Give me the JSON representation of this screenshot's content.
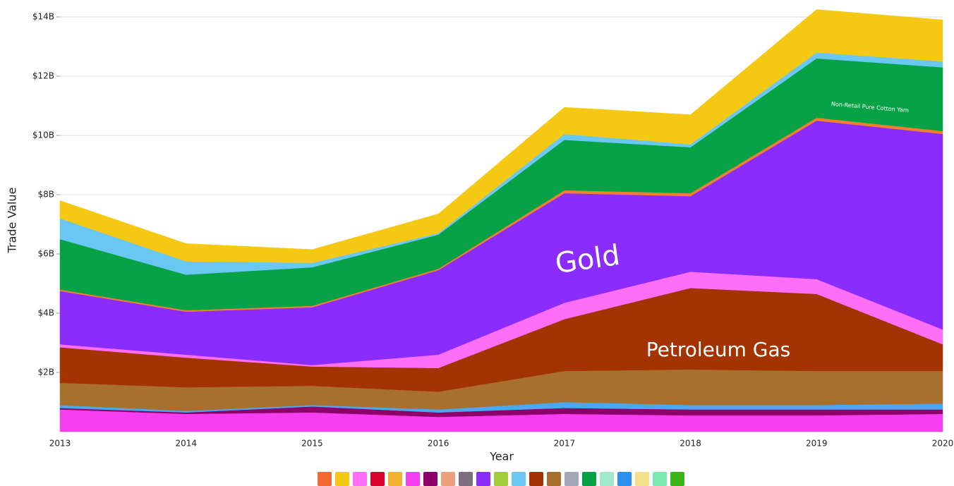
{
  "chart_data": {
    "type": "stacked_area",
    "x_label": "Year",
    "y_label": "Trade Value",
    "x": [
      2013,
      2014,
      2015,
      2016,
      2017,
      2018,
      2019,
      2020
    ],
    "xlim": [
      2013,
      2020
    ],
    "xticks": [
      2013,
      2014,
      2015,
      2016,
      2017,
      2018,
      2019,
      2020
    ],
    "ylim": [
      0,
      14
    ],
    "yticks": [
      {
        "value": 2,
        "label": "$2B"
      },
      {
        "value": 4,
        "label": "$4B"
      },
      {
        "value": 6,
        "label": "$6B"
      },
      {
        "value": 8,
        "label": "$8B"
      },
      {
        "value": 10,
        "label": "$10B"
      },
      {
        "value": 12,
        "label": "$12B"
      },
      {
        "value": 14,
        "label": "$14B"
      }
    ],
    "grid": true,
    "series": [
      {
        "color": "#f53ef0",
        "values": [
          0.75,
          0.6,
          0.65,
          0.5,
          0.6,
          0.55,
          0.55,
          0.6
        ]
      },
      {
        "color": "#8e0069",
        "values": [
          0.05,
          0.05,
          0.2,
          0.15,
          0.2,
          0.2,
          0.2,
          0.15
        ]
      },
      {
        "color": "#4aa7f0",
        "values": [
          0.1,
          0.05,
          0.05,
          0.1,
          0.2,
          0.15,
          0.15,
          0.2
        ]
      },
      {
        "color": "#a8702f",
        "values": [
          0.75,
          0.8,
          0.65,
          0.6,
          1.05,
          1.2,
          1.15,
          1.1
        ]
      },
      {
        "color": "#a33300",
        "values": [
          1.2,
          1.0,
          0.65,
          0.8,
          1.75,
          2.75,
          2.6,
          0.9
        ]
      },
      {
        "color": "#ff6ef7",
        "values": [
          0.1,
          0.1,
          0.05,
          0.45,
          0.55,
          0.55,
          0.5,
          0.5
        ]
      },
      {
        "color": "#8a2cfc",
        "values": [
          1.8,
          1.45,
          1.95,
          2.85,
          3.7,
          2.55,
          5.35,
          6.6
        ]
      },
      {
        "color": "#f08030",
        "values": [
          0.05,
          0.05,
          0.05,
          0.05,
          0.1,
          0.1,
          0.1,
          0.1
        ]
      },
      {
        "color": "#07a245",
        "values": [
          1.7,
          1.2,
          1.3,
          1.15,
          1.7,
          1.55,
          2.0,
          2.15
        ]
      },
      {
        "color": "#6ac7f2",
        "values": [
          0.7,
          0.45,
          0.15,
          0.05,
          0.2,
          0.1,
          0.2,
          0.2
        ]
      },
      {
        "color": "#f5c913",
        "values": [
          0.6,
          0.6,
          0.45,
          0.65,
          0.9,
          1.0,
          1.45,
          1.4
        ]
      }
    ],
    "annotations": [
      "Gold",
      "Petroleum Gas",
      "Non-Retail Pure Cotton Yarn"
    ],
    "legend_colors": [
      "#f06a35",
      "#f5c913",
      "#ff6ef7",
      "#d9052e",
      "#f0b030",
      "#f53ef0",
      "#8e0069",
      "#eda07a",
      "#7d6e80",
      "#8a2cfc",
      "#a4cc39",
      "#6ac7f2",
      "#a33300",
      "#a8702f",
      "#a2a8b8",
      "#07a245",
      "#9fe8c8",
      "#2d8ff0",
      "#f3e08a",
      "#7de8b0",
      "#3cb51b"
    ]
  }
}
